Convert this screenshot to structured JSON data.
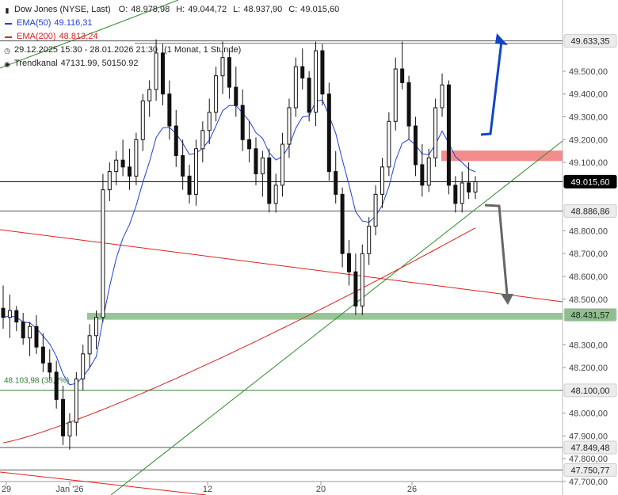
{
  "chart_data": {
    "type": "candlestick",
    "legend": {
      "title": "Dow Jones (NYSE, Last)",
      "open_label": "O:",
      "open": "48.978,98",
      "high_label": "H:",
      "high": "49.044,72",
      "low_label": "L:",
      "low": "48.937,90",
      "close_label": "C:",
      "close": "49.015,60",
      "ema50_label": "EMA(50)",
      "ema50_value": "49.116,31",
      "ema200_label": "EMA(200)",
      "ema200_value": "48.813,24",
      "period": "29.12.2025 15:30 - 28.01.2026 21:30",
      "period_note": "(1 Monat, 1 Stunde)",
      "trend_label": "Trendkanal",
      "trend_values": "47131.99, 50150.92"
    },
    "ylim": [
      47700,
      49750
    ],
    "y_ticks": [
      "49.500,00",
      "49.400,00",
      "49.300,00",
      "49.200,00",
      "49.100,00",
      "48.800,00",
      "48.700,00",
      "48.600,00",
      "48.500,00",
      "48.300,00",
      "48.200,00",
      "48.000,00",
      "47.900,00",
      "47.800,00",
      "47.700,00"
    ],
    "y_tick_values": [
      49500,
      49400,
      49300,
      49200,
      49100,
      48800,
      48700,
      48600,
      48500,
      48300,
      48200,
      48000,
      47900,
      47800,
      47700
    ],
    "x_ticks": [
      "29",
      "Jan '26",
      "12",
      "20",
      "26"
    ],
    "levels": [
      {
        "label": "49.633,35",
        "value": 49633.35,
        "color": "#555555"
      },
      {
        "label": "49.015,60",
        "value": 49015.6,
        "color": "#000000"
      },
      {
        "label": "48.886,86",
        "value": 48886.86,
        "color": "#555555"
      },
      {
        "label": "48.431,57",
        "value": 48431.57,
        "color": "#7fb27f"
      },
      {
        "label": "48.100,00",
        "value": 48100,
        "color": "#2e7d32"
      },
      {
        "label": "47.849,48",
        "value": 47849.48,
        "color": "#555555"
      },
      {
        "label": "47.750,77",
        "value": 47750.77,
        "color": "#555555"
      }
    ],
    "fib_label": "48.103,98 (38,2%)",
    "resistance_zone": [
      49120,
      49145
    ],
    "support_zone": [
      48410,
      48440
    ],
    "colors": {
      "ema50": "#1f3fdc",
      "ema200": "#e02020",
      "trend": "#2e8b2e",
      "down_channel": "#e02020",
      "up_arrow": "#1144cc",
      "down_arrow": "#666666",
      "resistance": "#f28080",
      "support": "#8dbf8d"
    },
    "ohlc": [
      [
        48460,
        48560,
        48370,
        48420
      ],
      [
        48420,
        48520,
        48330,
        48450
      ],
      [
        48450,
        48470,
        48360,
        48400
      ],
      [
        48400,
        48440,
        48300,
        48330
      ],
      [
        48330,
        48400,
        48250,
        48380
      ],
      [
        48380,
        48430,
        48260,
        48290
      ],
      [
        48290,
        48350,
        48180,
        48220
      ],
      [
        48220,
        48280,
        48150,
        48180
      ],
      [
        48180,
        48230,
        48020,
        48060
      ],
      [
        48060,
        48120,
        47860,
        47900
      ],
      [
        47900,
        48000,
        47840,
        47960
      ],
      [
        47960,
        48180,
        47900,
        48150
      ],
      [
        48150,
        48300,
        48100,
        48260
      ],
      [
        48260,
        48390,
        48200,
        48340
      ],
      [
        48340,
        48450,
        48280,
        48420
      ],
      [
        48420,
        49050,
        48400,
        48980
      ],
      [
        48980,
        49100,
        48930,
        49060
      ],
      [
        49060,
        49150,
        49000,
        49110
      ],
      [
        49110,
        49200,
        49040,
        49080
      ],
      [
        49080,
        49160,
        48980,
        49040
      ],
      [
        49040,
        49230,
        49000,
        49200
      ],
      [
        49200,
        49400,
        49150,
        49370
      ],
      [
        49370,
        49460,
        49300,
        49420
      ],
      [
        49420,
        49640,
        49370,
        49580
      ],
      [
        49580,
        49620,
        49350,
        49400
      ],
      [
        49400,
        49460,
        49200,
        49260
      ],
      [
        49260,
        49330,
        49080,
        49130
      ],
      [
        49130,
        49200,
        48980,
        49040
      ],
      [
        49040,
        49090,
        48920,
        48960
      ],
      [
        48960,
        49200,
        48910,
        49160
      ],
      [
        49160,
        49280,
        49100,
        49240
      ],
      [
        49240,
        49380,
        49180,
        49320
      ],
      [
        49320,
        49520,
        49280,
        49480
      ],
      [
        49480,
        49630,
        49400,
        49560
      ],
      [
        49560,
        49600,
        49380,
        49430
      ],
      [
        49430,
        49520,
        49300,
        49350
      ],
      [
        49350,
        49420,
        49150,
        49200
      ],
      [
        49200,
        49280,
        49100,
        49160
      ],
      [
        49160,
        49210,
        49000,
        49050
      ],
      [
        49050,
        49150,
        48950,
        49120
      ],
      [
        49120,
        49160,
        48880,
        48920
      ],
      [
        48920,
        49050,
        48880,
        49000
      ],
      [
        49000,
        49230,
        48950,
        49180
      ],
      [
        49180,
        49380,
        49120,
        49340
      ],
      [
        49340,
        49560,
        49300,
        49520
      ],
      [
        49520,
        49600,
        49420,
        49470
      ],
      [
        49470,
        49500,
        49280,
        49320
      ],
      [
        49320,
        49630,
        49260,
        49590
      ],
      [
        49590,
        49620,
        49350,
        49400
      ],
      [
        49400,
        49450,
        49020,
        49060
      ],
      [
        49060,
        49150,
        48920,
        48960
      ],
      [
        48960,
        48990,
        48640,
        48700
      ],
      [
        48700,
        48760,
        48560,
        48620
      ],
      [
        48620,
        48700,
        48430,
        48470
      ],
      [
        48470,
        48740,
        48430,
        48700
      ],
      [
        48700,
        48860,
        48650,
        48820
      ],
      [
        48820,
        49000,
        48780,
        48960
      ],
      [
        48960,
        49120,
        48900,
        49080
      ],
      [
        49080,
        49320,
        49040,
        49280
      ],
      [
        49280,
        49560,
        49240,
        49510
      ],
      [
        49510,
        49630,
        49420,
        49450
      ],
      [
        49450,
        49480,
        49200,
        49260
      ],
      [
        49260,
        49300,
        49040,
        49090
      ],
      [
        49090,
        49180,
        48950,
        49000
      ],
      [
        49000,
        49160,
        48970,
        49120
      ],
      [
        49120,
        49380,
        49080,
        49340
      ],
      [
        49340,
        49490,
        49300,
        49440
      ],
      [
        49440,
        49460,
        48960,
        49000
      ],
      [
        49000,
        49040,
        48880,
        48920
      ],
      [
        48920,
        49060,
        48880,
        49010
      ],
      [
        49010,
        49100,
        48940,
        48970
      ],
      [
        48970,
        49040,
        48940,
        49015
      ]
    ]
  }
}
